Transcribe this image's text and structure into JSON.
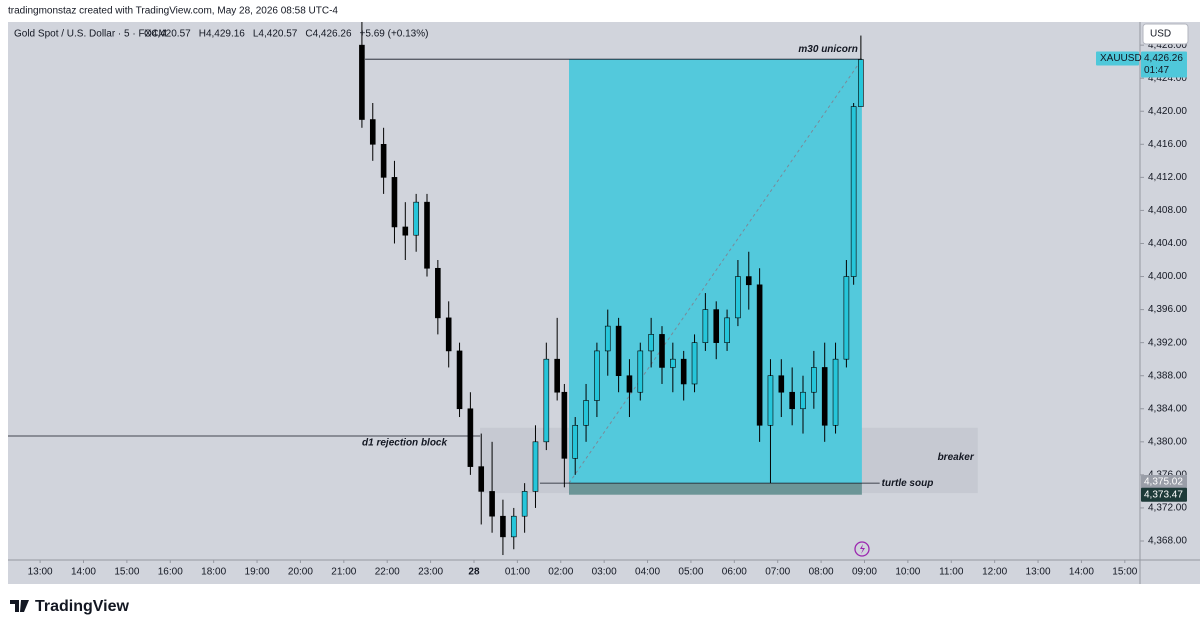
{
  "header": {
    "text": "tradingmonstaz created with TradingView.com, May 28, 2026 08:58 UTC-4"
  },
  "footer": {
    "logo": "TradingView"
  },
  "chart_data": {
    "type": "candlestick",
    "title": "Gold Spot / U.S. Dollar · 5 · FXCM",
    "legend_values": [
      "O4,420.57",
      "H4,429.16",
      "L4,420.57",
      "C4,426.26",
      "+5.69 (+0.13%)"
    ],
    "currency": "USD",
    "symbol": "XAUUSD",
    "countdown": "01:47",
    "up_color": "#26c6da",
    "down_color": "#000000",
    "xlim": [
      -0.74,
      25.35
    ],
    "xticks": [
      {
        "value": 0,
        "label": "13:00"
      },
      {
        "value": 1,
        "label": "14:00"
      },
      {
        "value": 2,
        "label": "15:00"
      },
      {
        "value": 3,
        "label": "16:00"
      },
      {
        "value": 4,
        "label": "18:00"
      },
      {
        "value": 5,
        "label": "19:00"
      },
      {
        "value": 6,
        "label": "20:00"
      },
      {
        "value": 7,
        "label": "21:00"
      },
      {
        "value": 8,
        "label": "22:00"
      },
      {
        "value": 9,
        "label": "23:00"
      },
      {
        "value": 10,
        "label": "28"
      },
      {
        "value": 11,
        "label": "01:00"
      },
      {
        "value": 12,
        "label": "02:00"
      },
      {
        "value": 13,
        "label": "03:00"
      },
      {
        "value": 14,
        "label": "04:00"
      },
      {
        "value": 15,
        "label": "05:00"
      },
      {
        "value": 16,
        "label": "06:00"
      },
      {
        "value": 17,
        "label": "07:00"
      },
      {
        "value": 18,
        "label": "08:00"
      },
      {
        "value": 19,
        "label": "09:00"
      },
      {
        "value": 20,
        "label": "10:00"
      },
      {
        "value": 21,
        "label": "11:00"
      },
      {
        "value": 22,
        "label": "12:00"
      },
      {
        "value": 23,
        "label": "13:00"
      },
      {
        "value": 24,
        "label": "14:00"
      },
      {
        "value": 25,
        "label": "15:00"
      }
    ],
    "ylim": [
      4365.7,
      4430.8
    ],
    "yticks": [
      {
        "value": 4368,
        "label": "4,368.00"
      },
      {
        "value": 4372,
        "label": "4,372.00"
      },
      {
        "value": 4376,
        "label": "4,376.00"
      },
      {
        "value": 4380,
        "label": "4,380.00"
      },
      {
        "value": 4384,
        "label": "4,384.00"
      },
      {
        "value": 4388,
        "label": "4,388.00"
      },
      {
        "value": 4392,
        "label": "4,392.00"
      },
      {
        "value": 4396,
        "label": "4,396.00"
      },
      {
        "value": 4400,
        "label": "4,400.00"
      },
      {
        "value": 4404,
        "label": "4,404.00"
      },
      {
        "value": 4408,
        "label": "4,408.00"
      },
      {
        "value": 4412,
        "label": "4,412.00"
      },
      {
        "value": 4416,
        "label": "4,416.00"
      },
      {
        "value": 4420,
        "label": "4,420.00"
      },
      {
        "value": 4424,
        "label": "4,424.00"
      },
      {
        "value": 4428,
        "label": "4,428.00"
      }
    ],
    "candles": {
      "x": [
        7.417,
        7.667,
        7.917,
        8.167,
        8.417,
        8.667,
        8.917,
        9.167,
        9.417,
        9.667,
        9.917,
        10.167,
        10.417,
        10.667,
        10.917,
        11.167,
        11.417,
        11.667,
        11.917,
        12.083,
        12.333,
        12.583,
        12.833,
        13.083,
        13.333,
        13.583,
        13.833,
        14.083,
        14.333,
        14.583,
        14.833,
        15.083,
        15.333,
        15.583,
        15.833,
        16.083,
        16.333,
        16.583,
        16.833,
        17.083,
        17.333,
        17.583,
        17.833,
        18.083,
        18.333,
        18.583,
        18.75,
        18.917
      ],
      "open": [
        4428,
        4419,
        4416,
        4412,
        4406,
        4405,
        4409,
        4401,
        4395,
        4391,
        4384,
        4377,
        4374,
        4371,
        4368.5,
        4371,
        4374,
        4380,
        4390,
        4386,
        4378,
        4382,
        4385,
        4391,
        4394,
        4388,
        4386,
        4391,
        4393,
        4389,
        4390,
        4387,
        4392,
        4396,
        4392,
        4395,
        4400,
        4399,
        4382,
        4388,
        4386,
        4384,
        4386,
        4389,
        4382,
        4390,
        4400,
        4420.57
      ],
      "high": [
        4430.8,
        4421,
        4418,
        4414,
        4409,
        4410,
        4410,
        4402,
        4397,
        4392,
        4386,
        4381,
        4380,
        4373,
        4372,
        4375,
        4382,
        4392,
        4395,
        4387,
        4383,
        4387,
        4392,
        4396,
        4395,
        4390,
        4392,
        4395,
        4394,
        4392,
        4391,
        4393,
        4398,
        4397,
        4396,
        4402,
        4403,
        4401,
        4390,
        4390,
        4389,
        4388,
        4391,
        4392,
        4392,
        4402,
        4421,
        4429.16
      ],
      "low": [
        4418,
        4414,
        4410,
        4404,
        4402,
        4403,
        4400,
        4393,
        4389,
        4383,
        4376,
        4370,
        4369,
        4366.3,
        4367,
        4369,
        4372,
        4379,
        4385,
        4374.5,
        4376,
        4380,
        4383,
        4388,
        4386,
        4383,
        4385,
        4389,
        4387,
        4386,
        4385,
        4386,
        4391,
        4390,
        4391,
        4394,
        4396,
        4380,
        4375,
        4383,
        4382,
        4381,
        4384,
        4380,
        4381,
        4389,
        4399,
        4420.57
      ],
      "close": [
        4419,
        4416,
        4412,
        4406,
        4405,
        4409,
        4401,
        4395,
        4391,
        4384,
        4377,
        4374,
        4371,
        4368.5,
        4371,
        4374,
        4380,
        4390,
        4386,
        4378,
        4382,
        4385,
        4391,
        4394,
        4388,
        4386,
        4391,
        4393,
        4389,
        4390,
        4387,
        4392,
        4396,
        4392,
        4395,
        4400,
        4399,
        4382,
        4388,
        4386,
        4384,
        4386,
        4389,
        4382,
        4390,
        4400,
        4420.57,
        4426.26
      ]
    },
    "price_tags": [
      {
        "value": 4426.26,
        "label": "4,426.26",
        "color": "#4fc8da"
      },
      {
        "value": 4375.02,
        "label": "4,375.02",
        "color": "#9a9ea8"
      },
      {
        "value": 4373.47,
        "label": "4,373.47",
        "color": "#1d3a38"
      }
    ],
    "drawings": {
      "long_position": {
        "x": [
          12.19,
          18.94
        ],
        "entry": 4375.0,
        "target": 4426.3,
        "stop": 4373.6,
        "profit_color": "#53c9dc",
        "stop_color": "#6c9597"
      },
      "breaker": {
        "x": [
          10.14,
          21.61
        ],
        "y": [
          4373.8,
          4381.7
        ],
        "label": "breaker",
        "color": "#c4c7d0"
      },
      "lines": [
        {
          "x": [
            7.49,
            18.94
          ],
          "value": 4426.3,
          "label": "m30 unicorn"
        },
        {
          "x": [
            -0.74,
            10.14
          ],
          "value": 4380.7,
          "label": "d1 rejection block"
        },
        {
          "x": [
            11.52,
            19.35
          ],
          "value": 4375.0,
          "label": "turtle soup"
        }
      ]
    }
  }
}
